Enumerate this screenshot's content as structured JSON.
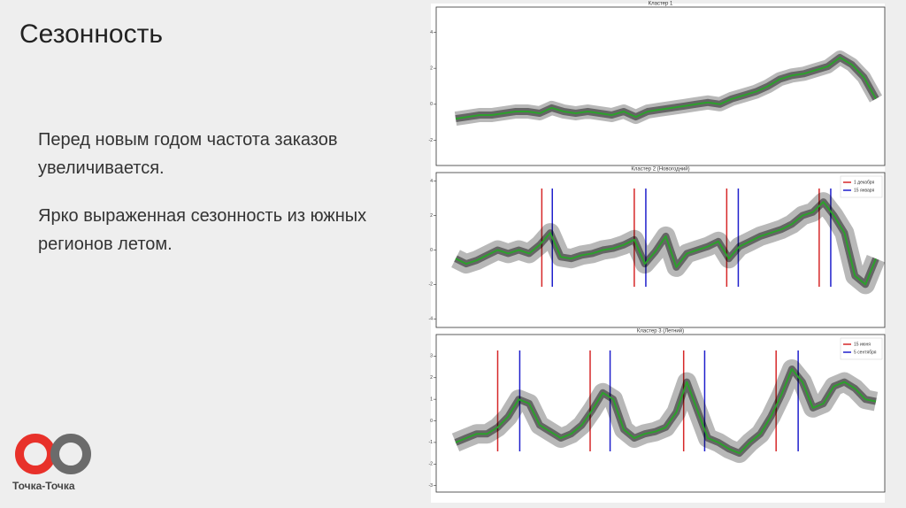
{
  "slide": {
    "title": "Сезонность",
    "paragraphs": [
      "Перед новым годом частота заказов увеличивается.",
      "Ярко выраженная сезонность из южных регионов летом."
    ],
    "logo_text": "Точка-Точка"
  },
  "chart_data": [
    {
      "type": "line",
      "title": "Кластер 1",
      "ylim": [
        -3.4,
        5.4
      ],
      "yticks": [
        -2,
        0,
        2,
        4
      ],
      "series": [
        {
          "color": "#2ca02c",
          "values": [
            -0.8,
            -0.7,
            -0.6,
            -0.6,
            -0.5,
            -0.4,
            -0.4,
            -0.5,
            -0.2,
            -0.4,
            -0.5,
            -0.4,
            -0.5,
            -0.6,
            -0.4,
            -0.7,
            -0.4,
            -0.3,
            -0.2,
            -0.1,
            0,
            0.1,
            0,
            0.3,
            0.5,
            0.7,
            1.0,
            1.4,
            1.6,
            1.7,
            1.9,
            2.1,
            2.6,
            2.2,
            1.5,
            0.3
          ]
        }
      ],
      "markers": []
    },
    {
      "type": "line",
      "title": "Кластер 2 (Новогодний)",
      "ylim": [
        -4.5,
        4.5
      ],
      "yticks": [
        -4,
        -2,
        0,
        2,
        4
      ],
      "legend": "upper right",
      "series": [
        {
          "color": "#2ca02c",
          "values": [
            -0.5,
            -0.8,
            -0.6,
            -0.3,
            0,
            -0.2,
            0,
            -0.2,
            0.3,
            1.0,
            -0.4,
            -0.5,
            -0.3,
            -0.2,
            0,
            0.1,
            0.3,
            0.6,
            -0.8,
            -0.1,
            0.8,
            -1.0,
            -0.2,
            0,
            0.2,
            0.5,
            -0.5,
            0.2,
            0.5,
            0.8,
            1.0,
            1.2,
            1.5,
            2.0,
            2.2,
            2.8,
            2.0,
            1.0,
            -1.5,
            -2.0,
            -0.5
          ]
        }
      ],
      "markers": [
        {
          "name": "1 декабря",
          "color": "#d62728",
          "x": [
            8.2,
            17.0,
            25.8,
            34.6
          ]
        },
        {
          "name": "15 января",
          "color": "#1f1fcc",
          "x": [
            9.2,
            18.1,
            26.9,
            35.7
          ]
        }
      ]
    },
    {
      "type": "line",
      "title": "Кластер 3 (Летний)",
      "ylim": [
        -3.3,
        4
      ],
      "yticks": [
        -3,
        -2,
        -1,
        0,
        1,
        2,
        3
      ],
      "legend": "upper right",
      "series": [
        {
          "color": "#2ca02c",
          "values": [
            -1.0,
            -0.8,
            -0.6,
            -0.6,
            -0.3,
            0.2,
            1.0,
            0.8,
            -0.2,
            -0.5,
            -0.8,
            -0.6,
            -0.2,
            0.5,
            1.3,
            1.0,
            -0.4,
            -0.8,
            -0.6,
            -0.5,
            -0.3,
            0.4,
            1.8,
            0.5,
            -0.8,
            -1.0,
            -1.3,
            -1.5,
            -1.0,
            -0.6,
            0.2,
            1.2,
            2.4,
            1.8,
            0.6,
            0.8,
            1.6,
            1.8,
            1.5,
            1.0,
            0.9
          ]
        }
      ],
      "markers": [
        {
          "name": "15 июня",
          "color": "#d62728",
          "x": [
            4.0,
            12.8,
            21.7,
            30.5
          ]
        },
        {
          "name": "5 сентября",
          "color": "#1f1fcc",
          "x": [
            6.1,
            14.7,
            23.7,
            32.6
          ]
        }
      ]
    }
  ]
}
